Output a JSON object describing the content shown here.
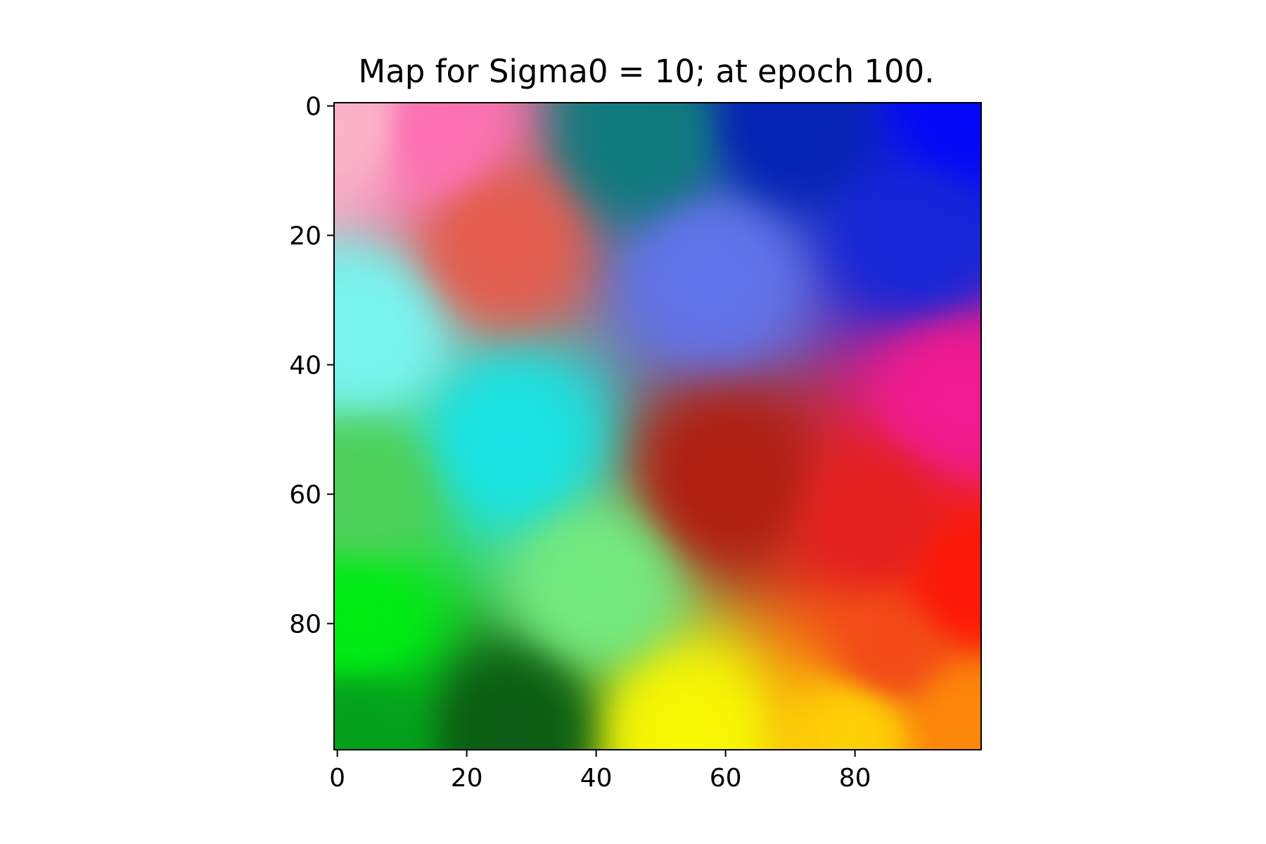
{
  "chart_data": {
    "type": "heatmap",
    "title": "Map for Sigma0 = 10; at epoch 100.",
    "grid": false,
    "xlim": [
      0,
      100
    ],
    "ylim": [
      100,
      0
    ],
    "x_ticks": [
      0,
      20,
      40,
      60,
      80
    ],
    "y_ticks": [
      0,
      20,
      40,
      60,
      80
    ],
    "y_axis_inverted": true,
    "color_regions": [
      {
        "name": "light pink",
        "center": [
          2,
          3
        ],
        "color": "#fbb3c8"
      },
      {
        "name": "pink",
        "center": [
          15,
          4
        ],
        "color": "#fc71b2"
      },
      {
        "name": "teal",
        "center": [
          47,
          5
        ],
        "color": "#0f7b7d"
      },
      {
        "name": "navy blue",
        "center": [
          70,
          3
        ],
        "color": "#0523b4"
      },
      {
        "name": "blue",
        "center": [
          98,
          1
        ],
        "color": "#0508f8"
      },
      {
        "name": "blue (right)",
        "center": [
          90,
          20
        ],
        "color": "#1527d8"
      },
      {
        "name": "coral red",
        "center": [
          25,
          21
        ],
        "color": "#e45d4e"
      },
      {
        "name": "periwinkle",
        "center": [
          58,
          26
        ],
        "color": "#6274eb"
      },
      {
        "name": "light cyan",
        "center": [
          4,
          35
        ],
        "color": "#78f5ef"
      },
      {
        "name": "magenta",
        "center": [
          96,
          45
        ],
        "color": "#f11a8f"
      },
      {
        "name": "cyan",
        "center": [
          27,
          52
        ],
        "color": "#19e3e2"
      },
      {
        "name": "medium green",
        "center": [
          4,
          60
        ],
        "color": "#4ed15a"
      },
      {
        "name": "dark red",
        "center": [
          60,
          58
        ],
        "color": "#b01f12"
      },
      {
        "name": "red",
        "center": [
          83,
          64
        ],
        "color": "#e42020"
      },
      {
        "name": "bright red",
        "center": [
          98,
          74
        ],
        "color": "#fd1808"
      },
      {
        "name": "light green",
        "center": [
          40,
          74
        ],
        "color": "#74eb80"
      },
      {
        "name": "bright green",
        "center": [
          3,
          80
        ],
        "color": "#00ee14"
      },
      {
        "name": "green",
        "center": [
          3,
          96
        ],
        "color": "#03a11b"
      },
      {
        "name": "dark green",
        "center": [
          27,
          96
        ],
        "color": "#0a5d12"
      },
      {
        "name": "yellow",
        "center": [
          54,
          97
        ],
        "color": "#f8f704"
      },
      {
        "name": "gold",
        "center": [
          80,
          96
        ],
        "color": "#fed106"
      },
      {
        "name": "orange",
        "center": [
          97,
          95
        ],
        "color": "#fc870a"
      },
      {
        "name": "orange-red",
        "center": [
          85,
          85
        ],
        "color": "#f24a18"
      }
    ]
  }
}
